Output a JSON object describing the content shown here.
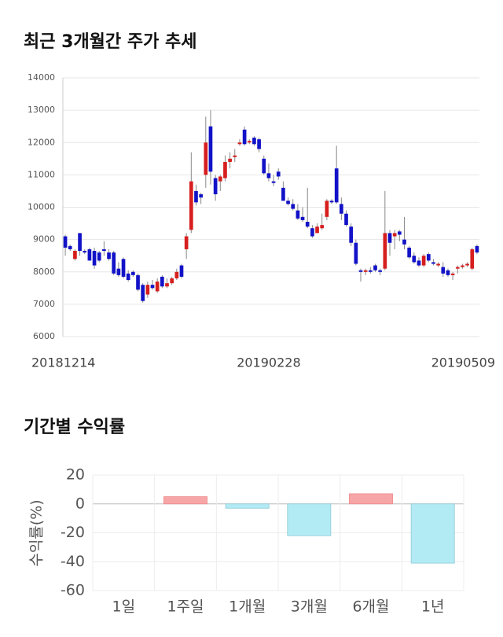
{
  "chart_data": [
    {
      "type": "candlestick",
      "title": "최근 3개월간 주가 추세",
      "categories": [
        "20181214",
        null,
        null,
        null,
        null,
        null,
        null,
        null,
        null,
        null,
        null,
        null,
        null,
        null,
        null,
        null,
        null,
        null,
        null,
        null,
        null,
        null,
        null,
        null,
        null,
        null,
        null,
        null,
        null,
        null,
        null,
        null,
        null,
        null,
        null,
        null,
        null,
        null,
        null,
        null,
        null,
        null,
        "20190228",
        null,
        null,
        null,
        null,
        null,
        null,
        null,
        null,
        null,
        null,
        null,
        null,
        null,
        null,
        null,
        null,
        null,
        null,
        null,
        null,
        null,
        null,
        null,
        null,
        null,
        null,
        null,
        null,
        null,
        null,
        null,
        null,
        null,
        null,
        null,
        null,
        null,
        null,
        null,
        null,
        null,
        null,
        "20190509"
      ],
      "values": [
        [
          9100,
          9150,
          8500,
          8750
        ],
        [
          8800,
          8850,
          8650,
          8700
        ],
        [
          8400,
          8700,
          8350,
          8650
        ],
        [
          9200,
          9200,
          8500,
          8650
        ],
        [
          8650,
          8700,
          8550,
          8600
        ],
        [
          8700,
          8750,
          8350,
          8350
        ],
        [
          8650,
          8750,
          8100,
          8200
        ],
        [
          8600,
          8650,
          8300,
          8350
        ],
        [
          8700,
          8950,
          8500,
          8650
        ],
        [
          8600,
          8700,
          8350,
          8400
        ],
        [
          8600,
          8650,
          7900,
          7950
        ],
        [
          8100,
          8300,
          7850,
          7900
        ],
        [
          8400,
          8450,
          7800,
          7850
        ],
        [
          7950,
          8050,
          7700,
          7750
        ],
        [
          8000,
          8050,
          7850,
          7900
        ],
        [
          7900,
          7950,
          7400,
          7450
        ],
        [
          7600,
          7650,
          7050,
          7100
        ],
        [
          7300,
          7700,
          7200,
          7600
        ],
        [
          7600,
          7750,
          7450,
          7500
        ],
        [
          7400,
          7800,
          7350,
          7700
        ],
        [
          7850,
          7900,
          7500,
          7550
        ],
        [
          7550,
          7800,
          7500,
          7650
        ],
        [
          7650,
          7850,
          7600,
          7800
        ],
        [
          7800,
          8100,
          7750,
          8000
        ],
        [
          8200,
          8250,
          7800,
          7850
        ],
        [
          8700,
          9200,
          8400,
          9100
        ],
        [
          9300,
          11700,
          9200,
          10800
        ],
        [
          10500,
          10700,
          10050,
          10150
        ],
        [
          10400,
          10450,
          10100,
          10300
        ],
        [
          11000,
          12800,
          10600,
          12000
        ],
        [
          12500,
          13000,
          10700,
          11100
        ],
        [
          10900,
          11000,
          10200,
          10400
        ],
        [
          10800,
          11000,
          10500,
          10950
        ],
        [
          10900,
          11600,
          10800,
          11400
        ],
        [
          11400,
          11700,
          11200,
          11500
        ],
        [
          11550,
          11800,
          11400,
          11600
        ],
        [
          11950,
          12100,
          11900,
          12000
        ],
        [
          12400,
          12500,
          11900,
          11950
        ],
        [
          12000,
          12100,
          11950,
          12050
        ],
        [
          12150,
          12200,
          11900,
          11950
        ],
        [
          12100,
          12150,
          11700,
          11800
        ],
        [
          11500,
          11600,
          11000,
          11050
        ],
        [
          11050,
          11350,
          10800,
          10900
        ],
        [
          10800,
          11000,
          10650,
          10750
        ],
        [
          11100,
          11200,
          10850,
          10950
        ],
        [
          10600,
          10800,
          10200,
          10200
        ],
        [
          10200,
          10300,
          10050,
          10100
        ],
        [
          10100,
          10250,
          9900,
          9950
        ],
        [
          9900,
          10100,
          9600,
          9650
        ],
        [
          9700,
          10000,
          9550,
          9600
        ],
        [
          9550,
          10600,
          9350,
          9400
        ],
        [
          9350,
          9450,
          9050,
          9100
        ],
        [
          9200,
          9500,
          9200,
          9400
        ],
        [
          9350,
          9800,
          9300,
          9450
        ],
        [
          9700,
          10250,
          9600,
          10200
        ],
        [
          10200,
          10250,
          10100,
          10150
        ],
        [
          11200,
          11900,
          10100,
          10150
        ],
        [
          10100,
          10300,
          9600,
          9800
        ],
        [
          9800,
          9900,
          9400,
          9450
        ],
        [
          9400,
          9500,
          8800,
          8900
        ],
        [
          8900,
          9000,
          8200,
          8250
        ],
        [
          8050,
          8100,
          7700,
          8000
        ],
        [
          8000,
          8100,
          7900,
          8050
        ],
        [
          8050,
          8150,
          7950,
          8000
        ],
        [
          8200,
          8250,
          8000,
          8050
        ],
        [
          8050,
          8100,
          7900,
          8000
        ],
        [
          8100,
          10500,
          8050,
          9200
        ],
        [
          9200,
          9300,
          8500,
          8900
        ],
        [
          9100,
          9300,
          8700,
          9200
        ],
        [
          9250,
          9300,
          8950,
          9150
        ],
        [
          9000,
          9700,
          8700,
          8850
        ],
        [
          8750,
          8800,
          8400,
          8450
        ],
        [
          8500,
          8600,
          8250,
          8300
        ],
        [
          8350,
          8450,
          8150,
          8200
        ],
        [
          8200,
          8550,
          8150,
          8500
        ],
        [
          8550,
          8600,
          8300,
          8350
        ],
        [
          8300,
          8400,
          8200,
          8250
        ],
        [
          8200,
          8300,
          8150,
          8250
        ],
        [
          8150,
          8300,
          7850,
          7950
        ],
        [
          8050,
          8100,
          7850,
          7900
        ],
        [
          7900,
          8000,
          7750,
          7950
        ],
        [
          8100,
          8200,
          7950,
          8150
        ],
        [
          8150,
          8250,
          8100,
          8200
        ],
        [
          8200,
          8300,
          8150,
          8250
        ],
        [
          8100,
          8750,
          8050,
          8700
        ],
        [
          8800,
          8850,
          8550,
          8600
        ]
      ],
      "up_color": "#d71e1e",
      "down_color": "#1212c8",
      "ylim": [
        6000,
        14000
      ],
      "yticks": [
        6000,
        7000,
        8000,
        9000,
        10000,
        11000,
        12000,
        13000,
        14000
      ],
      "grid": true
    },
    {
      "type": "bar",
      "title": "기간별 수익률",
      "y_label": "수익률(%)",
      "categories": [
        "1일",
        "1주일",
        "1개월",
        "3개월",
        "6개월",
        "1년"
      ],
      "values": [
        0,
        5,
        -3,
        -22,
        7,
        -41
      ],
      "positive_color": "#f7a6a8",
      "negative_color": "#b3ebf4",
      "ylim": [
        -60,
        20
      ],
      "yticks": [
        -60,
        -40,
        -20,
        0,
        20
      ],
      "grid": true
    }
  ]
}
